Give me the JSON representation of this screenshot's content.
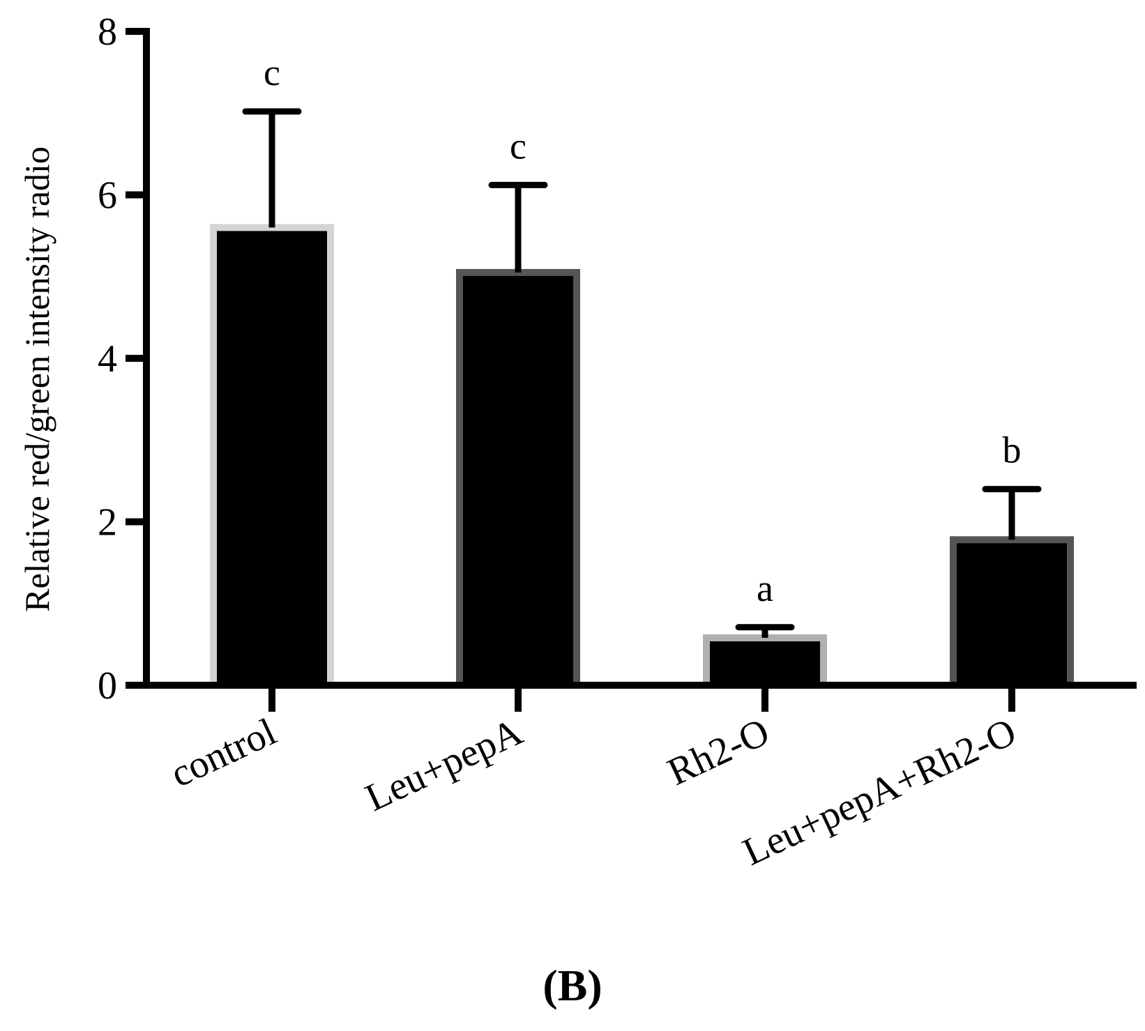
{
  "chart_data": {
    "type": "bar",
    "title": "",
    "xlabel": "",
    "ylabel": "Relative red/green intensity radio",
    "panel_label": "(B)",
    "categories": [
      "control",
      "Leu+pepA",
      "Rh2-O",
      "Leu+pepA+Rh2-O"
    ],
    "values": [
      5.6,
      5.05,
      0.58,
      1.78
    ],
    "error_upper": [
      1.42,
      1.07,
      0.13,
      0.62
    ],
    "significance": [
      "c",
      "c",
      "a",
      "b"
    ],
    "bar_fill_color": "#000000",
    "bar_edge_colors": [
      "#d4d4d4",
      "#555555",
      "#b0b0b0",
      "#555555"
    ],
    "ylim": [
      0,
      8
    ],
    "yticks": [
      0,
      2,
      4,
      6,
      8
    ],
    "grid": false,
    "legend": "none"
  }
}
